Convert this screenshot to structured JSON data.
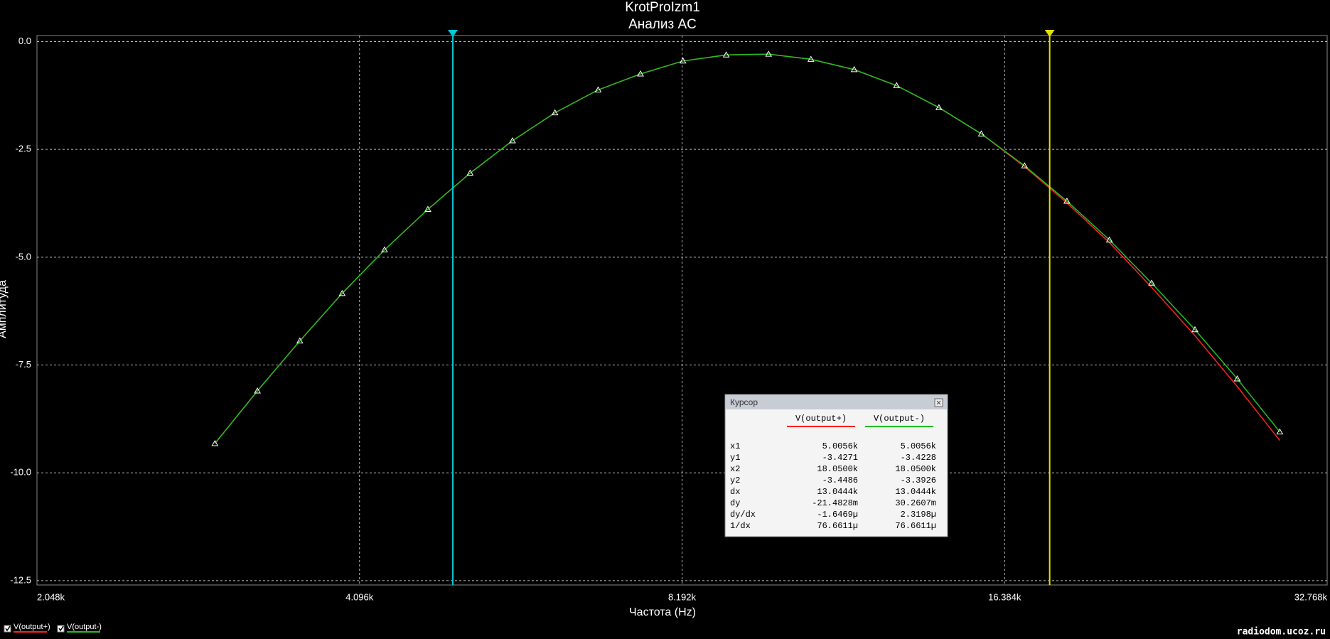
{
  "chart_data": {
    "type": "line",
    "title": "KrotProIzm1",
    "subtitle": "Анализ AC",
    "x_label": "Частота (Hz)",
    "y_label": "Амплитуда",
    "xscale": "log",
    "xlim": [
      2048,
      32768
    ],
    "xticks": [
      {
        "value": 2048,
        "label": "2.048k"
      },
      {
        "value": 4096,
        "label": "4.096k"
      },
      {
        "value": 8192,
        "label": "8.192k"
      },
      {
        "value": 16384,
        "label": "16.384k"
      },
      {
        "value": 32768,
        "label": "32.768k"
      }
    ],
    "ylim": [
      -12.6,
      0.14
    ],
    "yticks": [
      {
        "value": 0,
        "label": "0.0"
      },
      -2.5,
      {
        "value": -5,
        "label": "-5.0"
      },
      -7.5,
      {
        "value": -10,
        "label": "-10.0"
      },
      -12.5
    ],
    "grid": true,
    "x": [
      3002,
      3289,
      3603,
      3946,
      4322,
      4744,
      5195,
      5690,
      6234,
      6840,
      7492,
      8208,
      9007,
      9865,
      10805,
      11858,
      12989,
      14226,
      15585,
      17101,
      18731,
      20522,
      22472,
      24664,
      27013,
      29597
    ],
    "series": [
      {
        "name": "V(output+)",
        "color": "#ff2020",
        "values": [
          -9.32,
          -8.1,
          -6.94,
          -5.84,
          -4.83,
          -3.89,
          -3.05,
          -2.3,
          -1.65,
          -1.12,
          -0.75,
          -0.45,
          -0.31,
          -0.29,
          -0.41,
          -0.65,
          -1.02,
          -1.53,
          -2.14,
          -2.9,
          -3.74,
          -4.66,
          -5.7,
          -6.82,
          -8.0,
          -9.25
        ]
      },
      {
        "name": "V(output-)",
        "color": "#20c020",
        "marker": "triangle",
        "values": [
          -9.32,
          -8.1,
          -6.94,
          -5.84,
          -4.83,
          -3.89,
          -3.05,
          -2.3,
          -1.65,
          -1.12,
          -0.75,
          -0.45,
          -0.31,
          -0.29,
          -0.41,
          -0.65,
          -1.02,
          -1.53,
          -2.14,
          -2.88,
          -3.7,
          -4.6,
          -5.6,
          -6.68,
          -7.82,
          -9.05
        ]
      }
    ],
    "cursors": [
      {
        "x": 5005.6,
        "color": "#00c8d8"
      },
      {
        "x": 18050,
        "color": "#e0e000"
      }
    ],
    "legend": "bottom-left"
  },
  "cursor_panel": {
    "title": "Курсор",
    "columns": [
      "V(output+)",
      "V(output-)"
    ],
    "rows": [
      [
        "x1",
        "5.0056k",
        "5.0056k"
      ],
      [
        "y1",
        "-3.4271",
        "-3.4228"
      ],
      [
        "x2",
        "18.0500k",
        "18.0500k"
      ],
      [
        "y2",
        "-3.4486",
        "-3.3926"
      ],
      [
        "dx",
        "13.0444k",
        "13.0444k"
      ],
      [
        "dy",
        "-21.4828m",
        "30.2607m"
      ],
      [
        "dy/dx",
        "-1.6469µ",
        "2.3198µ"
      ],
      [
        "1/dx",
        "76.6611µ",
        "76.6611µ"
      ]
    ]
  },
  "watermark": "radiodom.ucoz.ru"
}
